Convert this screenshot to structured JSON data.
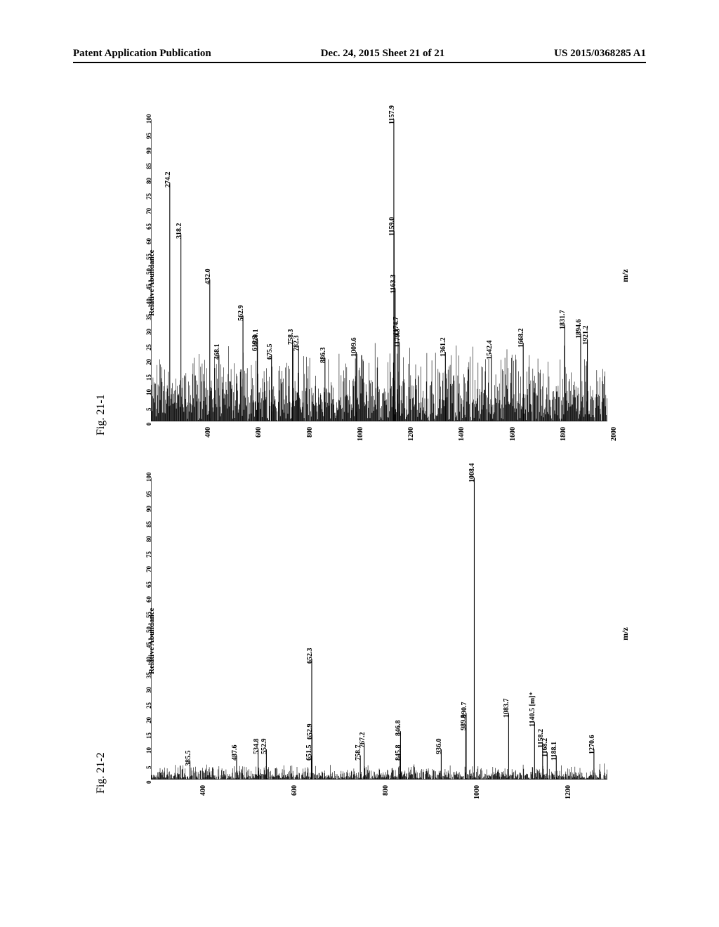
{
  "header": {
    "left": "Patent Application Publication",
    "center": "Dec. 24, 2015  Sheet 21 of 21",
    "right": "US 2015/0368285 A1"
  },
  "panels": {
    "fig21_1": {
      "label": "Fig. 21-1",
      "y_label": "Relative Abundance",
      "x_label": "m/z",
      "x_range": [
        200,
        2000
      ],
      "x_ticks": [
        400,
        600,
        800,
        1000,
        1200,
        1400,
        1600,
        1800,
        2000
      ],
      "y_range": [
        0,
        100
      ],
      "y_ticks": [
        0,
        5,
        10,
        15,
        20,
        25,
        30,
        35,
        40,
        45,
        50,
        55,
        60,
        65,
        70,
        75,
        80,
        85,
        90,
        95,
        100
      ],
      "noise_height_pct": 18,
      "peaks": [
        {
          "mz": 274.2,
          "h": 79,
          "label": "274.2"
        },
        {
          "mz": 318.2,
          "h": 62,
          "label": "318.2"
        },
        {
          "mz": 432.0,
          "h": 47,
          "label": "432.0"
        },
        {
          "mz": 468.1,
          "h": 22,
          "label": "468.1"
        },
        {
          "mz": 562.9,
          "h": 35,
          "label": "562.9"
        },
        {
          "mz": 619.3,
          "h": 25,
          "label": "619.3"
        },
        {
          "mz": 620.1,
          "h": 27,
          "label": "620.1"
        },
        {
          "mz": 675.5,
          "h": 22,
          "label": "675.5"
        },
        {
          "mz": 758.3,
          "h": 27,
          "label": "758.3"
        },
        {
          "mz": 782.3,
          "h": 25,
          "label": "782.3"
        },
        {
          "mz": 886.3,
          "h": 21,
          "label": "886.3"
        },
        {
          "mz": 1009.6,
          "h": 23,
          "label": "1009.6"
        },
        {
          "mz": 1157.9,
          "h": 100,
          "label": "1157.9"
        },
        {
          "mz": 1159.0,
          "h": 63,
          "label": "1159.0"
        },
        {
          "mz": 1163.3,
          "h": 44,
          "label": "1163.3"
        },
        {
          "mz": 1174.7,
          "h": 30,
          "label": "1174.7"
        },
        {
          "mz": 1179.3,
          "h": 26,
          "label": "1179.3"
        },
        {
          "mz": 1361.2,
          "h": 23,
          "label": "1361.2"
        },
        {
          "mz": 1542.4,
          "h": 22,
          "label": "1542.4"
        },
        {
          "mz": 1668.2,
          "h": 26,
          "label": "1668.2"
        },
        {
          "mz": 1831.7,
          "h": 32,
          "label": "1831.7"
        },
        {
          "mz": 1894.6,
          "h": 29,
          "label": "1894.6"
        },
        {
          "mz": 1921.2,
          "h": 27,
          "label": "1921.2"
        }
      ]
    },
    "fig21_2": {
      "label": "Fig. 21-2",
      "y_label": "Relative Abundance",
      "x_label": "m/z",
      "x_range": [
        300,
        1300
      ],
      "x_ticks": [
        400,
        600,
        800,
        1000,
        1200
      ],
      "y_range": [
        0,
        100
      ],
      "y_ticks": [
        0,
        5,
        10,
        15,
        20,
        25,
        30,
        35,
        40,
        45,
        50,
        55,
        60,
        65,
        70,
        75,
        80,
        85,
        90,
        95,
        100
      ],
      "noise_height_pct": 5,
      "peaks": [
        {
          "mz": 385.5,
          "h": 6,
          "label": "385.5"
        },
        {
          "mz": 487.6,
          "h": 8,
          "label": "487.6"
        },
        {
          "mz": 534.8,
          "h": 10,
          "label": "534.8"
        },
        {
          "mz": 552.9,
          "h": 10,
          "label": "552.9"
        },
        {
          "mz": 651.5,
          "h": 8,
          "label": "651.5"
        },
        {
          "mz": 652.3,
          "h": 40,
          "label": "652.3"
        },
        {
          "mz": 652.9,
          "h": 15,
          "label": "652.9"
        },
        {
          "mz": 758.7,
          "h": 8,
          "label": "758.7"
        },
        {
          "mz": 767.2,
          "h": 12,
          "label": "767.2"
        },
        {
          "mz": 845.8,
          "h": 8,
          "label": "845.8"
        },
        {
          "mz": 846.8,
          "h": 16,
          "label": "846.8"
        },
        {
          "mz": 936.0,
          "h": 10,
          "label": "936.0"
        },
        {
          "mz": 989.8,
          "h": 18,
          "label": "989.8"
        },
        {
          "mz": 990.7,
          "h": 22,
          "label": "990.7"
        },
        {
          "mz": 1008.4,
          "h": 100,
          "label": "1008.4"
        },
        {
          "mz": 1083.7,
          "h": 22,
          "label": "1083.7"
        },
        {
          "mz": 1140.5,
          "h": 19,
          "label": "1140.5",
          "suffix": " [m]⁺"
        },
        {
          "mz": 1158.2,
          "h": 12,
          "label": "1158.2"
        },
        {
          "mz": 1168.2,
          "h": 9,
          "label": "1168.2"
        },
        {
          "mz": 1188.1,
          "h": 8,
          "label": "1188.1"
        },
        {
          "mz": 1270.6,
          "h": 10,
          "label": "1270.6"
        }
      ]
    }
  },
  "style": {
    "line_color": "#000000",
    "bg_color": "#ffffff",
    "font_family": "Times New Roman, serif"
  }
}
